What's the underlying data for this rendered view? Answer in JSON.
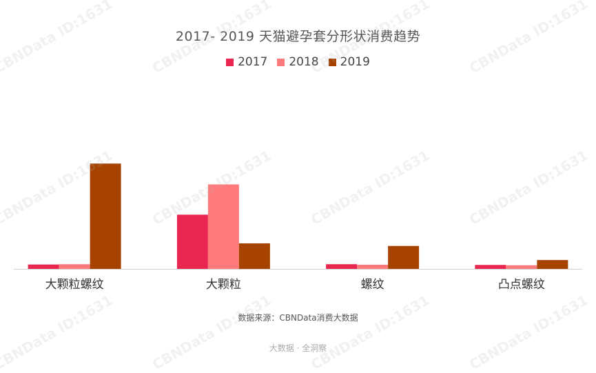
{
  "chart_data": {
    "type": "bar",
    "title": "2017- 2019 天猫避孕套分形状消费趋势",
    "categories": [
      "大颗粒螺纹",
      "大颗粒",
      "螺纹",
      "凸点螺纹"
    ],
    "series": [
      {
        "name": "2017",
        "color": "#E8264F",
        "values": [
          4.2,
          52,
          4.5,
          3.8
        ]
      },
      {
        "name": "2018",
        "color": "#FF7A7A",
        "values": [
          4.5,
          81,
          4.0,
          3.5
        ]
      },
      {
        "name": "2019",
        "color": "#A64300",
        "values": [
          101,
          24.5,
          22,
          8.5
        ]
      }
    ],
    "xlabel": "",
    "ylabel": "",
    "ylim": [
      0,
      160
    ],
    "grid": false,
    "legend_position": "top-center"
  },
  "source_note": "数据来源：CBNData消费大数据",
  "footer_slogan": "大数据 · 全洞察",
  "watermark_text": "CBNData ID:1631",
  "colors": {
    "title_text": "#555555",
    "axis_line": "#d0d0d0",
    "tick_text": "#333333"
  }
}
